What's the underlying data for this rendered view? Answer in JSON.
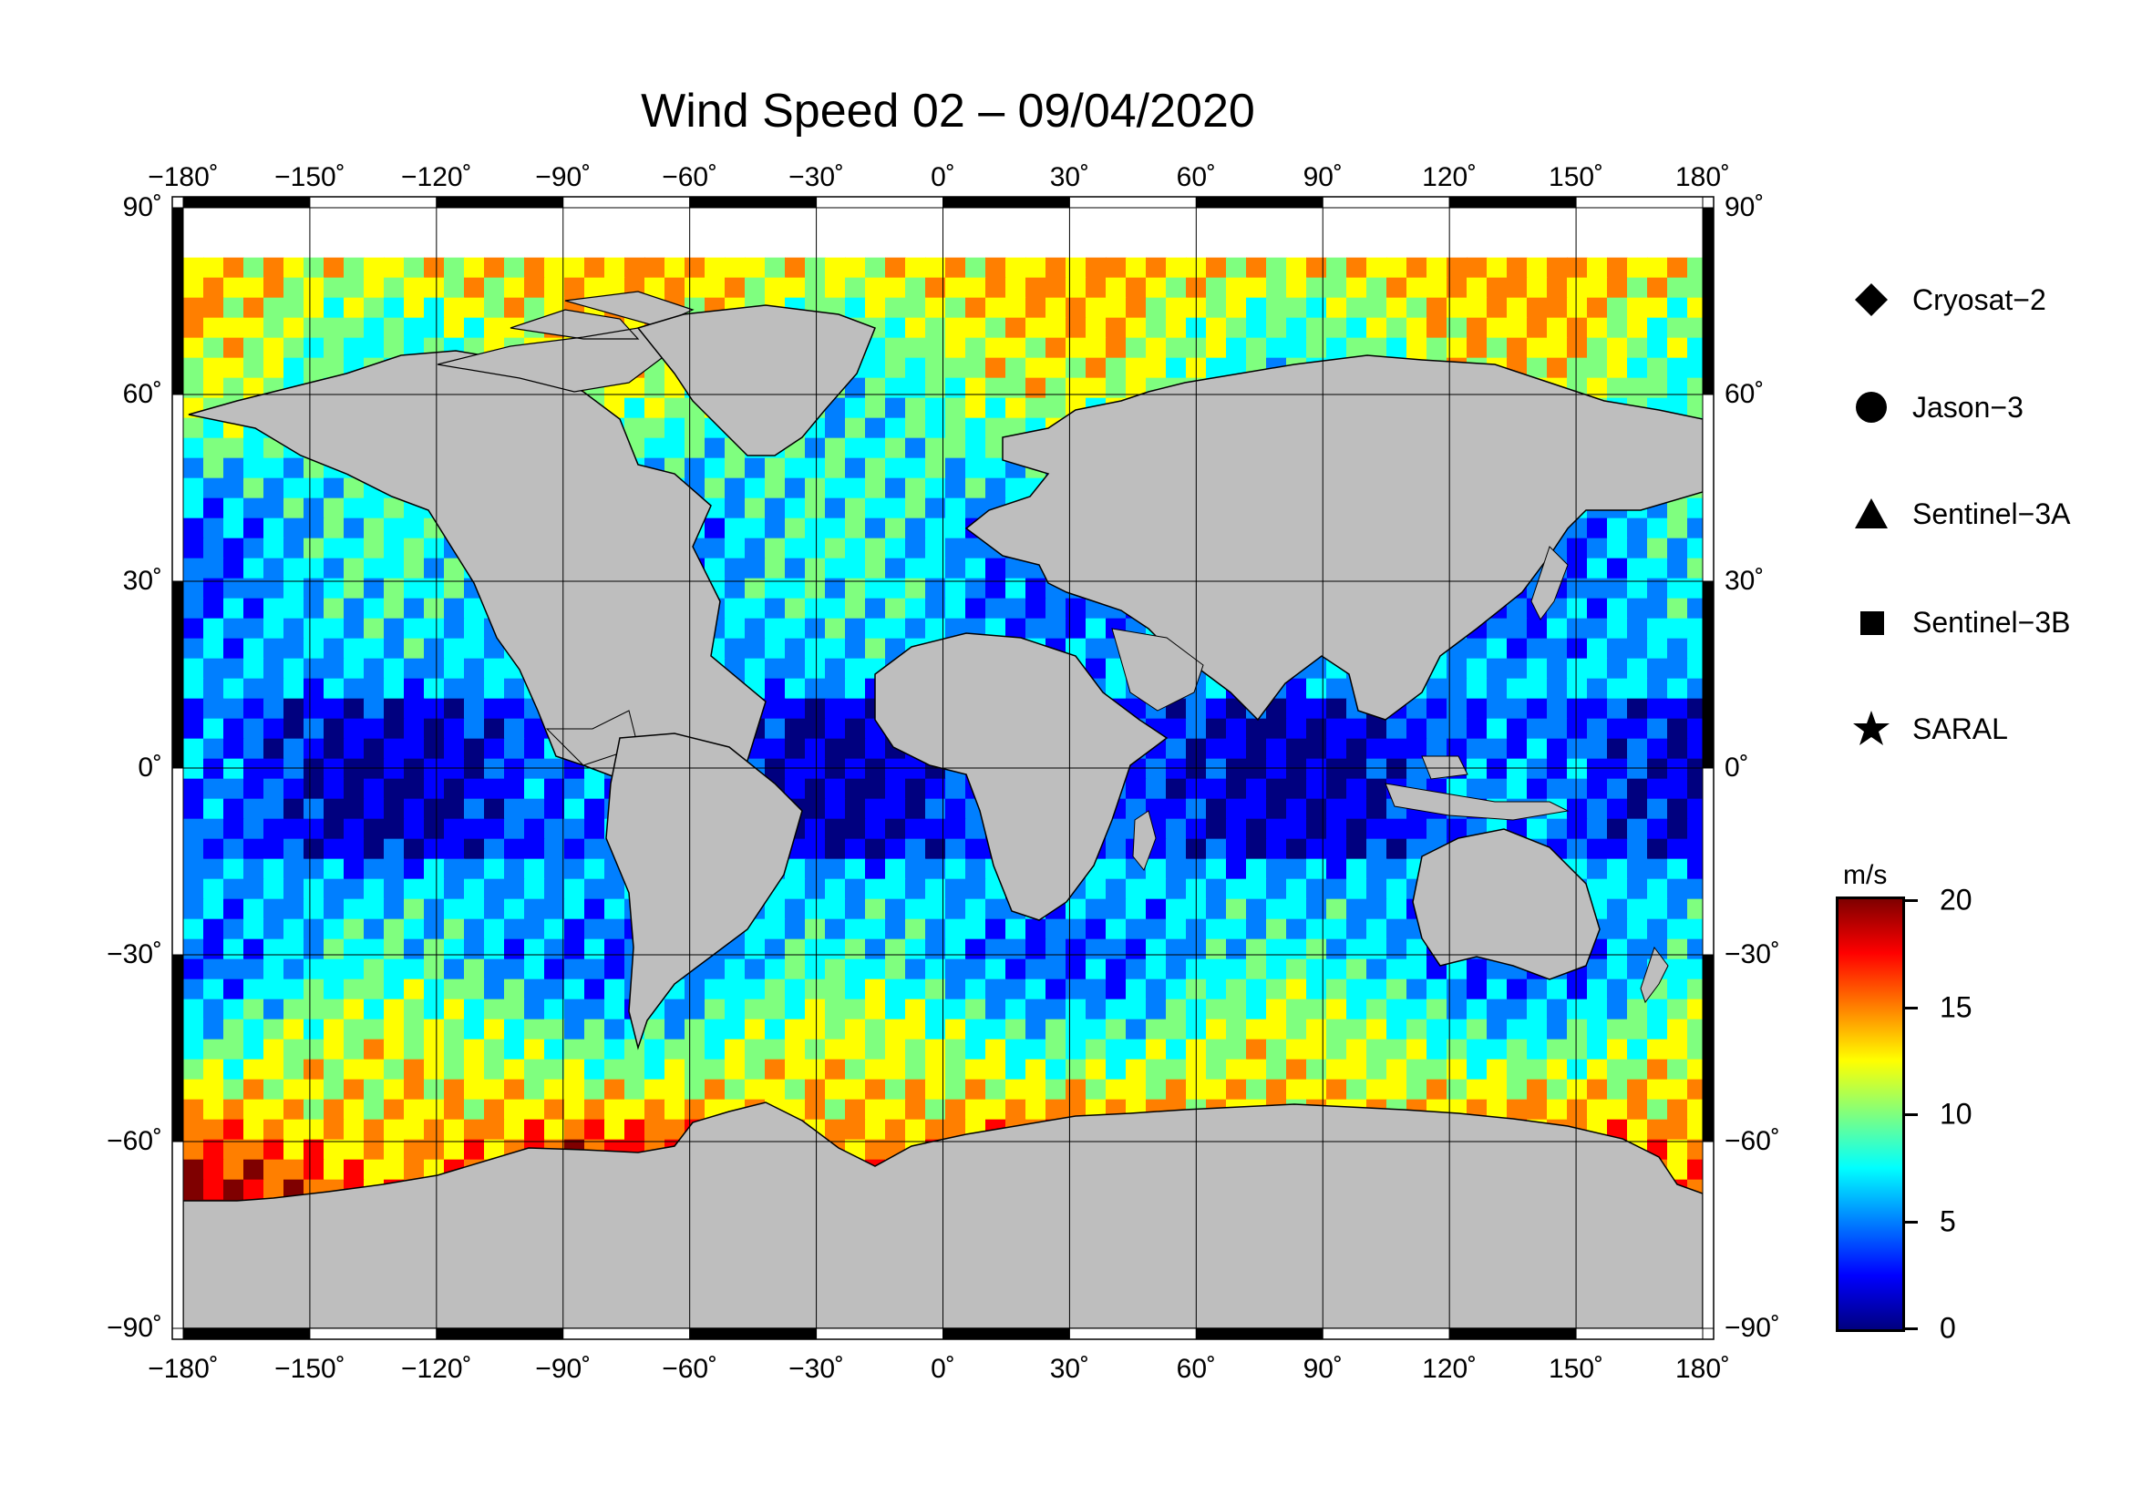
{
  "title": "Wind Speed 02 – 09/04/2020",
  "map": {
    "projection": "equirectangular",
    "lon_range": [
      -180,
      180
    ],
    "lat_range": [
      -90,
      90
    ],
    "lon_ticks": [
      "−180˚",
      "−150˚",
      "−120˚",
      "−90˚",
      "−60˚",
      "−30˚",
      "0˚",
      "30˚",
      "60˚",
      "90˚",
      "120˚",
      "150˚",
      "180˚"
    ],
    "lat_ticks": [
      "90˚",
      "60˚",
      "30˚",
      "0˚",
      "−30˚",
      "−60˚",
      "−90˚"
    ],
    "land_color": "#bebebe",
    "ice_color": "#ffffff",
    "frame_color": "#000000"
  },
  "legend": [
    {
      "label": "Cryosat−2",
      "symbol": "diamond"
    },
    {
      "label": "Jason−3",
      "symbol": "circle"
    },
    {
      "label": "Sentinel−3A",
      "symbol": "triangle"
    },
    {
      "label": "Sentinel−3B",
      "symbol": "square"
    },
    {
      "label": "SARAL",
      "symbol": "star"
    }
  ],
  "colorbar": {
    "unit": "m/s",
    "min": 0,
    "max": 20,
    "ticks": [
      "0",
      "5",
      "10",
      "15",
      "20"
    ],
    "colors": [
      "#00007f",
      "#0000ff",
      "#007fff",
      "#00ffff",
      "#7fff7f",
      "#ffff00",
      "#ff7f00",
      "#ff0000",
      "#7f0000"
    ]
  }
}
